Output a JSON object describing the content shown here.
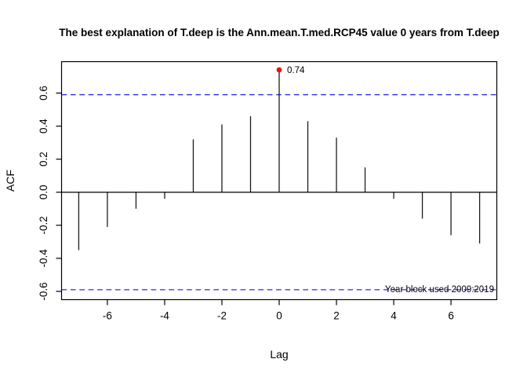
{
  "chart_data": {
    "type": "bar",
    "subtype": "acf-stem-plot",
    "title": "The best explanation of T.deep is the Ann.mean.T.med.RCP45 value 0 years from T.deep",
    "xlabel": "Lag",
    "ylabel": "ACF",
    "x": [
      -7,
      -6,
      -5,
      -4,
      -3,
      -2,
      -1,
      0,
      1,
      2,
      3,
      4,
      5,
      6,
      7
    ],
    "values": [
      -0.35,
      -0.21,
      -0.1,
      -0.04,
      0.32,
      0.41,
      0.46,
      0.74,
      0.43,
      0.33,
      0.15,
      -0.04,
      -0.16,
      -0.26,
      -0.31
    ],
    "highlight_point": {
      "lag": 0,
      "value": 0.74,
      "label": "0.74",
      "color": "#ee1111"
    },
    "confidence_bounds": {
      "upper": 0.59,
      "lower": -0.59,
      "style": "dashed",
      "color": "#2a2aee"
    },
    "annotation": "Year block used 2009:2019",
    "x_ticks": [
      -6,
      -4,
      -2,
      0,
      2,
      4,
      6
    ],
    "y_ticks": [
      0.6,
      0.4,
      0.2,
      0.0,
      -0.2,
      -0.4,
      -0.6
    ],
    "xlim": [
      -7.6,
      7.6
    ],
    "ylim": [
      -0.65,
      0.79
    ],
    "grid": false,
    "legend": null,
    "bar_color": "#1c1c1c",
    "axis_color": "#000000",
    "background": "#ffffff"
  }
}
